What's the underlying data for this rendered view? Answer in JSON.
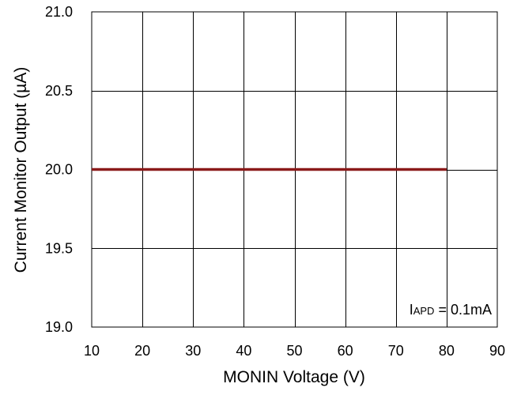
{
  "chart_data": {
    "type": "line",
    "title": "",
    "xlabel": "MONIN Voltage (V)",
    "ylabel": "Current Monitor Output (µA)",
    "xlim": [
      10,
      90
    ],
    "ylim": [
      19.0,
      21.0
    ],
    "x_ticks": [
      10,
      20,
      30,
      40,
      50,
      60,
      70,
      80,
      90
    ],
    "x_tick_labels": [
      "10",
      "20",
      "30",
      "40",
      "50",
      "60",
      "70",
      "80",
      "90"
    ],
    "y_ticks": [
      19.0,
      19.5,
      20.0,
      20.5,
      21.0
    ],
    "y_tick_labels": [
      "19.0",
      "19.5",
      "20.0",
      "20.5",
      "21.0"
    ],
    "grid": true,
    "series": [
      {
        "color": "#8B1A1A",
        "x": [
          10,
          80
        ],
        "y": [
          20.0,
          20.0
        ]
      }
    ],
    "annotation": {
      "main": "I",
      "subscript": "APD",
      "rest": " = 0.1mA"
    }
  }
}
